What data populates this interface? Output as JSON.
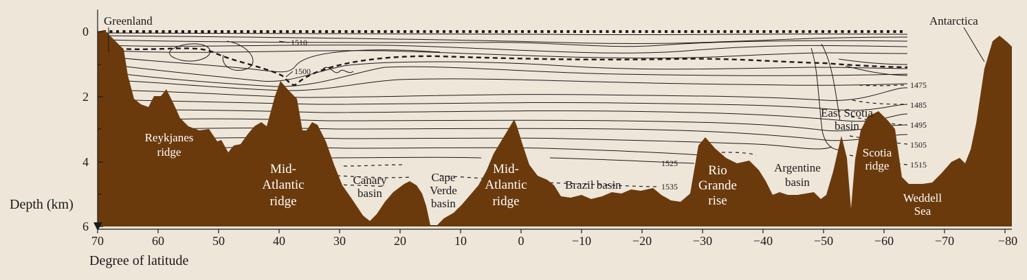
{
  "axes": {
    "y_label": "Depth (km)",
    "x_label": "Degree of latitude",
    "y_ticks": [
      "0",
      "2",
      "4",
      "6"
    ],
    "x_ticks": [
      "70",
      "60",
      "50",
      "40",
      "30",
      "20",
      "10",
      "0",
      "−10",
      "−20",
      "−30",
      "−40",
      "−50",
      "−60",
      "−70",
      "−80"
    ],
    "x_range": [
      70,
      -80
    ],
    "y_range_km": [
      0,
      6
    ]
  },
  "places": {
    "greenland": "Greenland",
    "antarctica": "Antarctica"
  },
  "features": {
    "reykjanes_1": "Reykjanes",
    "reykjanes_2": "ridge",
    "mar_n_1": "Mid-",
    "mar_n_2": "Atlantic",
    "mar_n_3": "ridge",
    "canary_1": "Canary",
    "canary_2": "basin",
    "cape_1": "Cape",
    "cape_2": "Verde",
    "cape_3": "basin",
    "mar_s_1": "Mid-",
    "mar_s_2": "Atlantic",
    "mar_s_3": "ridge",
    "brazil": "Brazil basin",
    "rio_1": "Rio",
    "rio_2": "Grande",
    "rio_3": "rise",
    "arg_1": "Argentine",
    "arg_2": "basin",
    "escotia_1": "East Scotia",
    "escotia_2": "basin",
    "scotia_1": "Scotia",
    "scotia_2": "ridge",
    "weddell_1": "Weddell",
    "weddell_2": "Sea"
  },
  "isolines": {
    "l1510": "1510",
    "l1500": "1500",
    "l1475": "1475",
    "l1485": "1485",
    "l1495": "1495",
    "l1505": "1505",
    "l1515": "1515",
    "l1525": "1525",
    "l1535": "1535"
  },
  "colors": {
    "seafloor": "#6b3a0c",
    "background": "#efe6da",
    "contour": "#1a1a1a"
  }
}
